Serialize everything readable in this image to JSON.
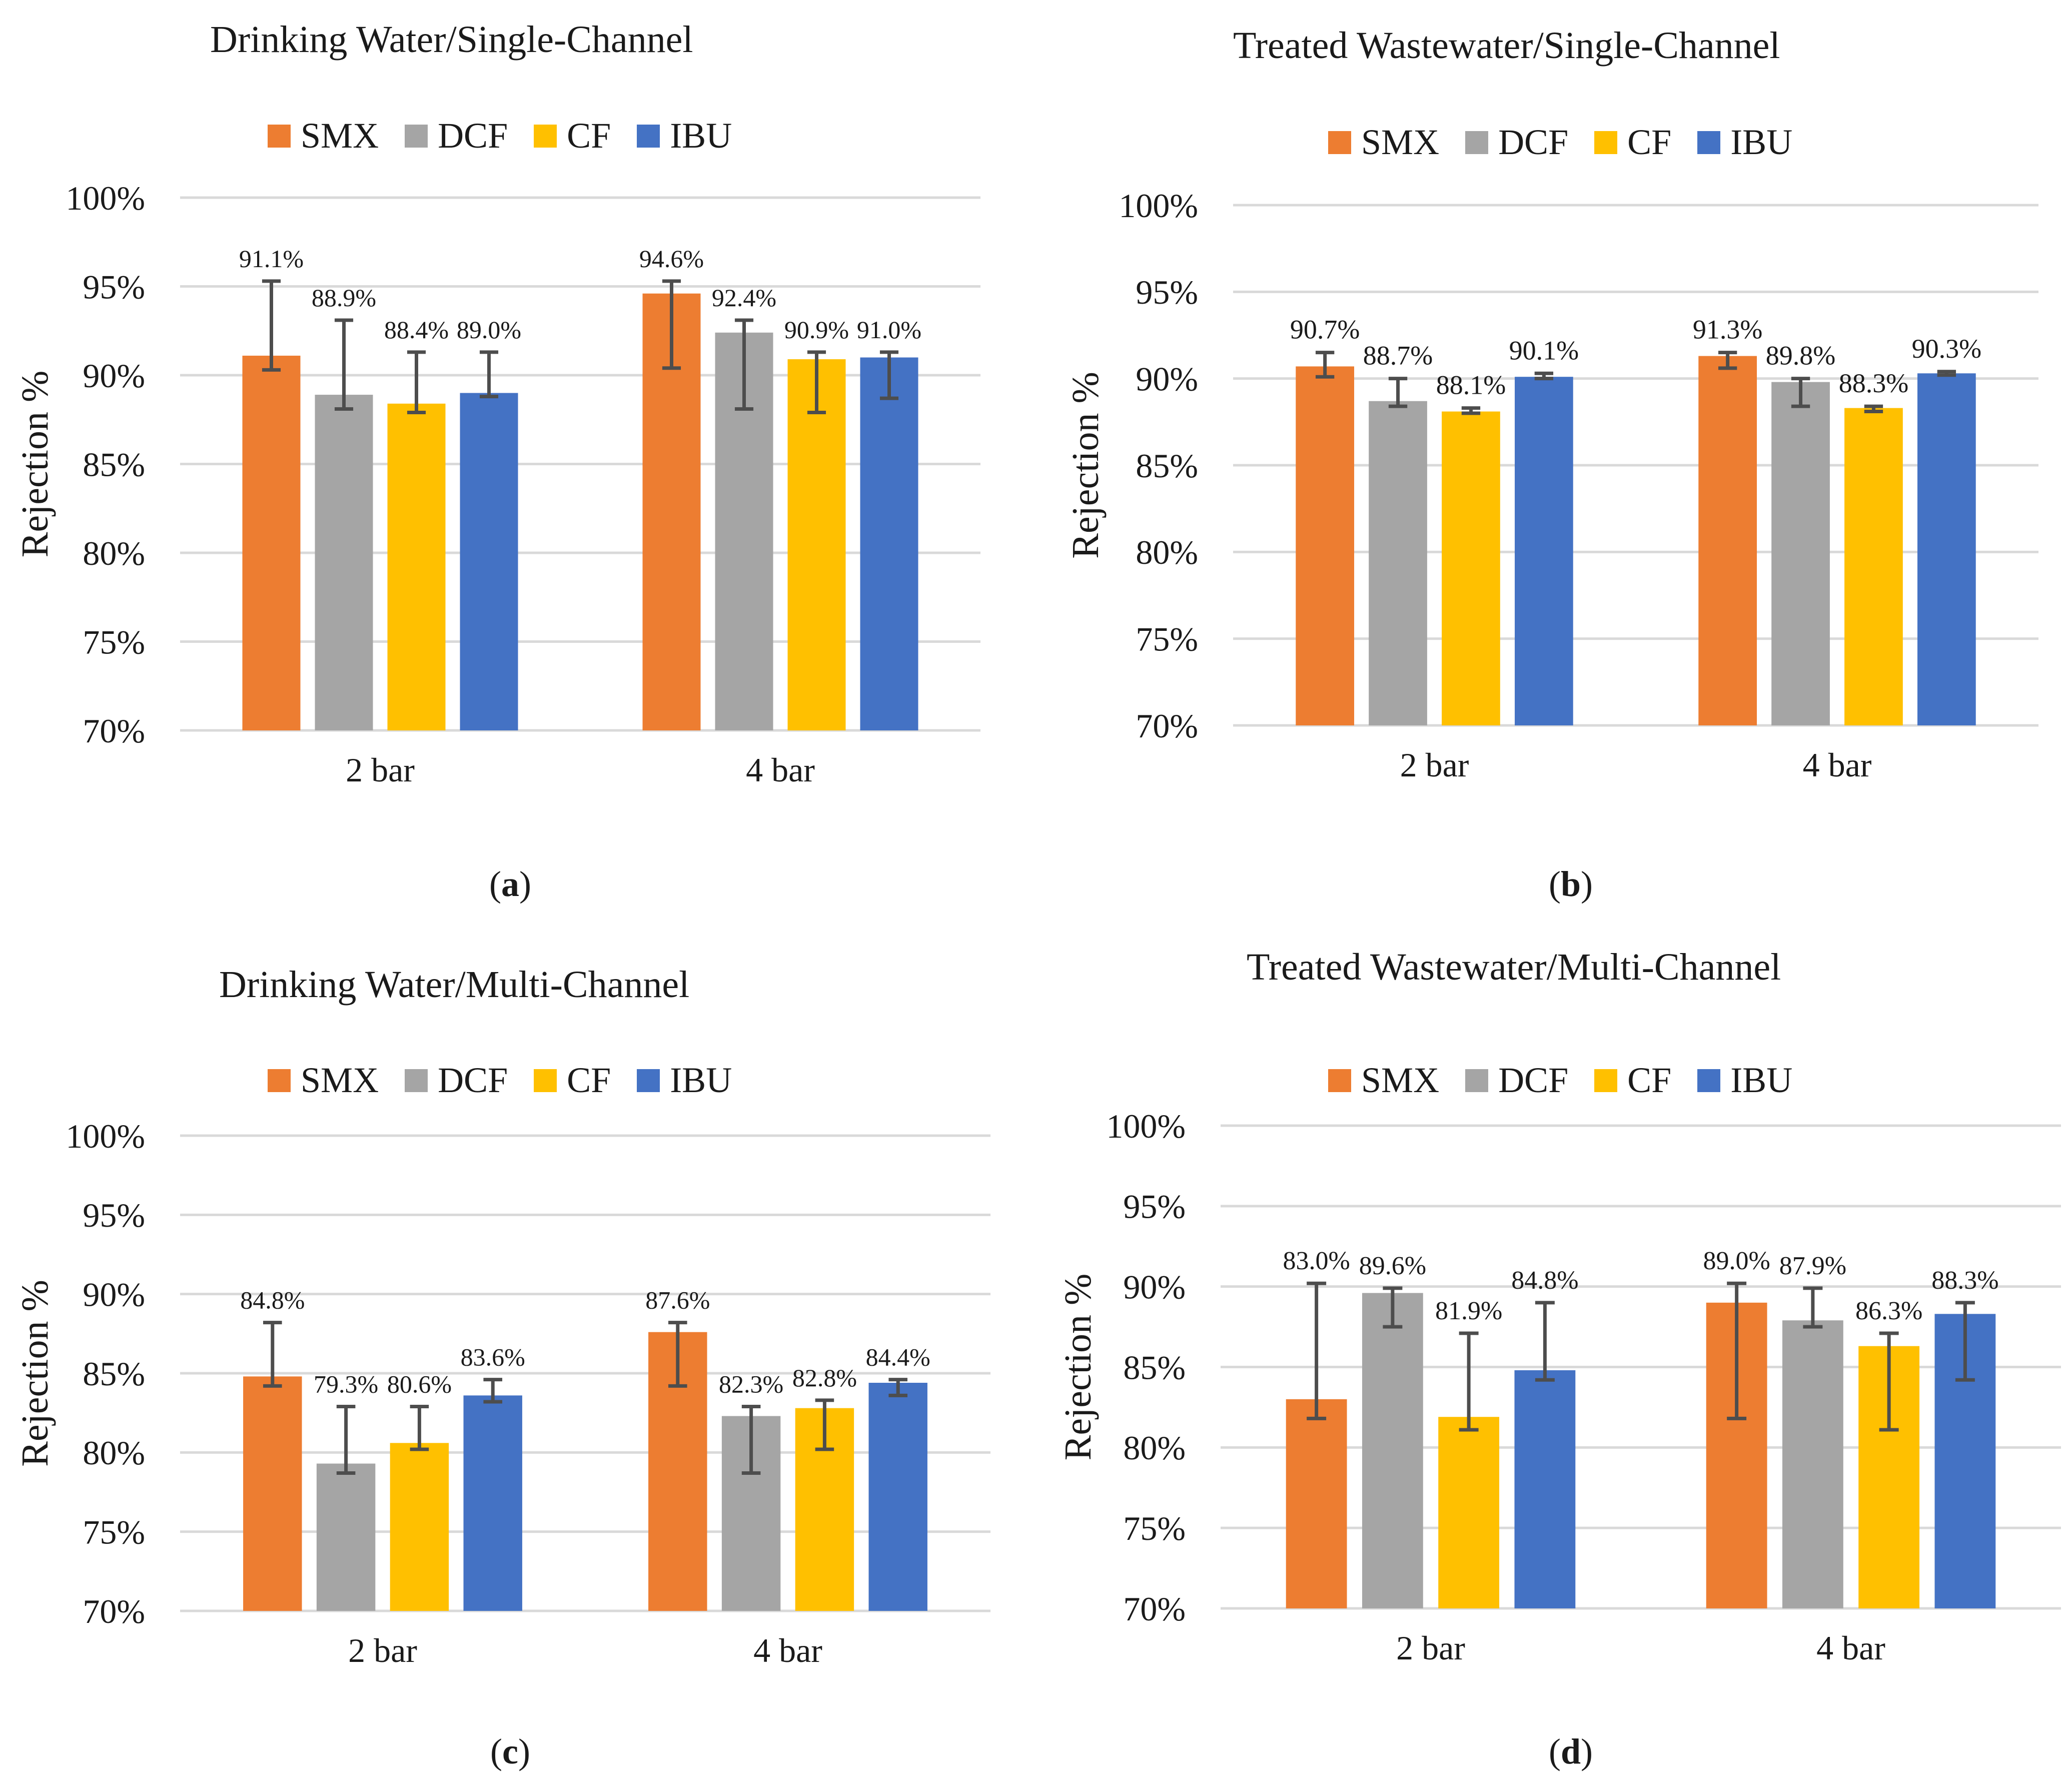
{
  "colors": {
    "SMX": "#ED7D31",
    "DCF": "#A5A5A5",
    "CF": "#FFC000",
    "IBU": "#4472C4",
    "grid": "#D9D9D9",
    "error_bar": "#4D4D4D"
  },
  "panels": [
    {
      "caption_open": "(",
      "caption_letter": "a",
      "caption_close": ")",
      "legend": [
        "SMX",
        "DCF",
        "CF",
        "IBU"
      ],
      "chart_data": {
        "type": "bar",
        "title": "Drinking Water/Single-Channel",
        "xlabel": "",
        "ylabel": "Rejection %",
        "ylim": [
          70,
          100
        ],
        "yticks": [
          "70%",
          "75%",
          "80%",
          "85%",
          "90%",
          "95%",
          "100%"
        ],
        "categories": [
          "2 bar",
          "4 bar"
        ],
        "series": [
          {
            "name": "SMX",
            "values": [
              91.1,
              94.6
            ],
            "labels": [
              "91.1%",
              "94.6%"
            ],
            "err_low": [
              90.3,
              90.4
            ],
            "err_high": [
              95.3,
              95.3
            ]
          },
          {
            "name": "DCF",
            "values": [
              88.9,
              92.4
            ],
            "labels": [
              "88.9%",
              "92.4%"
            ],
            "err_low": [
              88.1,
              88.1
            ],
            "err_high": [
              93.1,
              93.1
            ]
          },
          {
            "name": "CF",
            "values": [
              88.4,
              90.9
            ],
            "labels": [
              "88.4%",
              "90.9%"
            ],
            "err_low": [
              87.9,
              87.9
            ],
            "err_high": [
              91.3,
              91.3
            ]
          },
          {
            "name": "IBU",
            "values": [
              89.0,
              91.0
            ],
            "labels": [
              "89.0%",
              "91.0%"
            ],
            "err_low": [
              88.8,
              88.7
            ],
            "err_high": [
              91.3,
              91.3
            ]
          }
        ]
      }
    },
    {
      "caption_open": "(",
      "caption_letter": "b",
      "caption_close": ")",
      "legend": [
        "SMX",
        "DCF",
        "CF",
        "IBU"
      ],
      "chart_data": {
        "type": "bar",
        "title": "Treated Wastewater/Single-Channel",
        "xlabel": "",
        "ylabel": "Rejection %",
        "ylim": [
          70,
          100
        ],
        "yticks": [
          "70%",
          "75%",
          "80%",
          "85%",
          "90%",
          "95%",
          "100%"
        ],
        "categories": [
          "2 bar",
          "4 bar"
        ],
        "series": [
          {
            "name": "SMX",
            "values": [
              90.7,
              91.3
            ],
            "labels": [
              "90.7%",
              "91.3%"
            ],
            "err_low": [
              90.1,
              90.6
            ],
            "err_high": [
              91.5,
              91.5
            ]
          },
          {
            "name": "DCF",
            "values": [
              88.7,
              89.8
            ],
            "labels": [
              "88.7%",
              "89.8%"
            ],
            "err_low": [
              88.4,
              88.4
            ],
            "err_high": [
              90.0,
              90.0
            ]
          },
          {
            "name": "CF",
            "values": [
              88.1,
              88.3
            ],
            "labels": [
              "88.1%",
              "88.3%"
            ],
            "err_low": [
              88.0,
              88.1
            ],
            "err_high": [
              88.3,
              88.4
            ]
          },
          {
            "name": "IBU",
            "values": [
              90.1,
              90.3
            ],
            "labels": [
              "90.1%",
              "90.3%"
            ],
            "err_low": [
              90.0,
              90.2
            ],
            "err_high": [
              90.3,
              90.4
            ]
          }
        ]
      }
    },
    {
      "caption_open": "(",
      "caption_letter": "c",
      "caption_close": ")",
      "legend": [
        "SMX",
        "DCF",
        "CF",
        "IBU"
      ],
      "chart_data": {
        "type": "bar",
        "title": "Drinking Water/Multi-Channel",
        "xlabel": "",
        "ylabel": "Rejection %",
        "ylim": [
          70,
          100
        ],
        "yticks": [
          "70%",
          "75%",
          "80%",
          "85%",
          "90%",
          "95%",
          "100%"
        ],
        "categories": [
          "2 bar",
          "4 bar"
        ],
        "series": [
          {
            "name": "SMX",
            "values": [
              84.8,
              87.6
            ],
            "labels": [
              "84.8%",
              "87.6%"
            ],
            "err_low": [
              84.2,
              84.2
            ],
            "err_high": [
              88.2,
              88.2
            ]
          },
          {
            "name": "DCF",
            "values": [
              79.3,
              82.3
            ],
            "labels": [
              "79.3%",
              "82.3%"
            ],
            "err_low": [
              78.7,
              78.7
            ],
            "err_high": [
              82.9,
              82.9
            ]
          },
          {
            "name": "CF",
            "values": [
              80.6,
              82.8
            ],
            "labels": [
              "80.6%",
              "82.8%"
            ],
            "err_low": [
              80.2,
              80.2
            ],
            "err_high": [
              82.9,
              83.3
            ]
          },
          {
            "name": "IBU",
            "values": [
              83.6,
              84.4
            ],
            "labels": [
              "83.6%",
              "84.4%"
            ],
            "err_low": [
              83.2,
              83.6
            ],
            "err_high": [
              84.6,
              84.6
            ]
          }
        ]
      }
    },
    {
      "caption_open": "(",
      "caption_letter": "d",
      "caption_close": ")",
      "legend": [
        "SMX",
        "DCF",
        "CF",
        "IBU"
      ],
      "chart_data": {
        "type": "bar",
        "title": "Treated Wastewater/Multi-Channel",
        "xlabel": "",
        "ylabel": "Rejection %",
        "ylim": [
          70,
          100
        ],
        "yticks": [
          "70%",
          "75%",
          "80%",
          "85%",
          "90%",
          "95%",
          "100%"
        ],
        "categories": [
          "2 bar",
          "4 bar"
        ],
        "series": [
          {
            "name": "SMX",
            "values": [
              83.0,
              89.0
            ],
            "labels": [
              "83.0%",
              "89.0%"
            ],
            "err_low": [
              81.8,
              81.8
            ],
            "err_high": [
              90.2,
              90.2
            ]
          },
          {
            "name": "DCF",
            "values": [
              89.6,
              87.9
            ],
            "labels": [
              "89.6%",
              "87.9%"
            ],
            "err_low": [
              87.5,
              87.5
            ],
            "err_high": [
              89.9,
              89.9
            ]
          },
          {
            "name": "CF",
            "values": [
              81.9,
              86.3
            ],
            "labels": [
              "81.9%",
              "86.3%"
            ],
            "err_low": [
              81.1,
              81.1
            ],
            "err_high": [
              87.1,
              87.1
            ]
          },
          {
            "name": "IBU",
            "values": [
              84.8,
              88.3
            ],
            "labels": [
              "84.8%",
              "88.3%"
            ],
            "err_low": [
              84.2,
              84.2
            ],
            "err_high": [
              89.0,
              89.0
            ]
          }
        ]
      }
    }
  ]
}
